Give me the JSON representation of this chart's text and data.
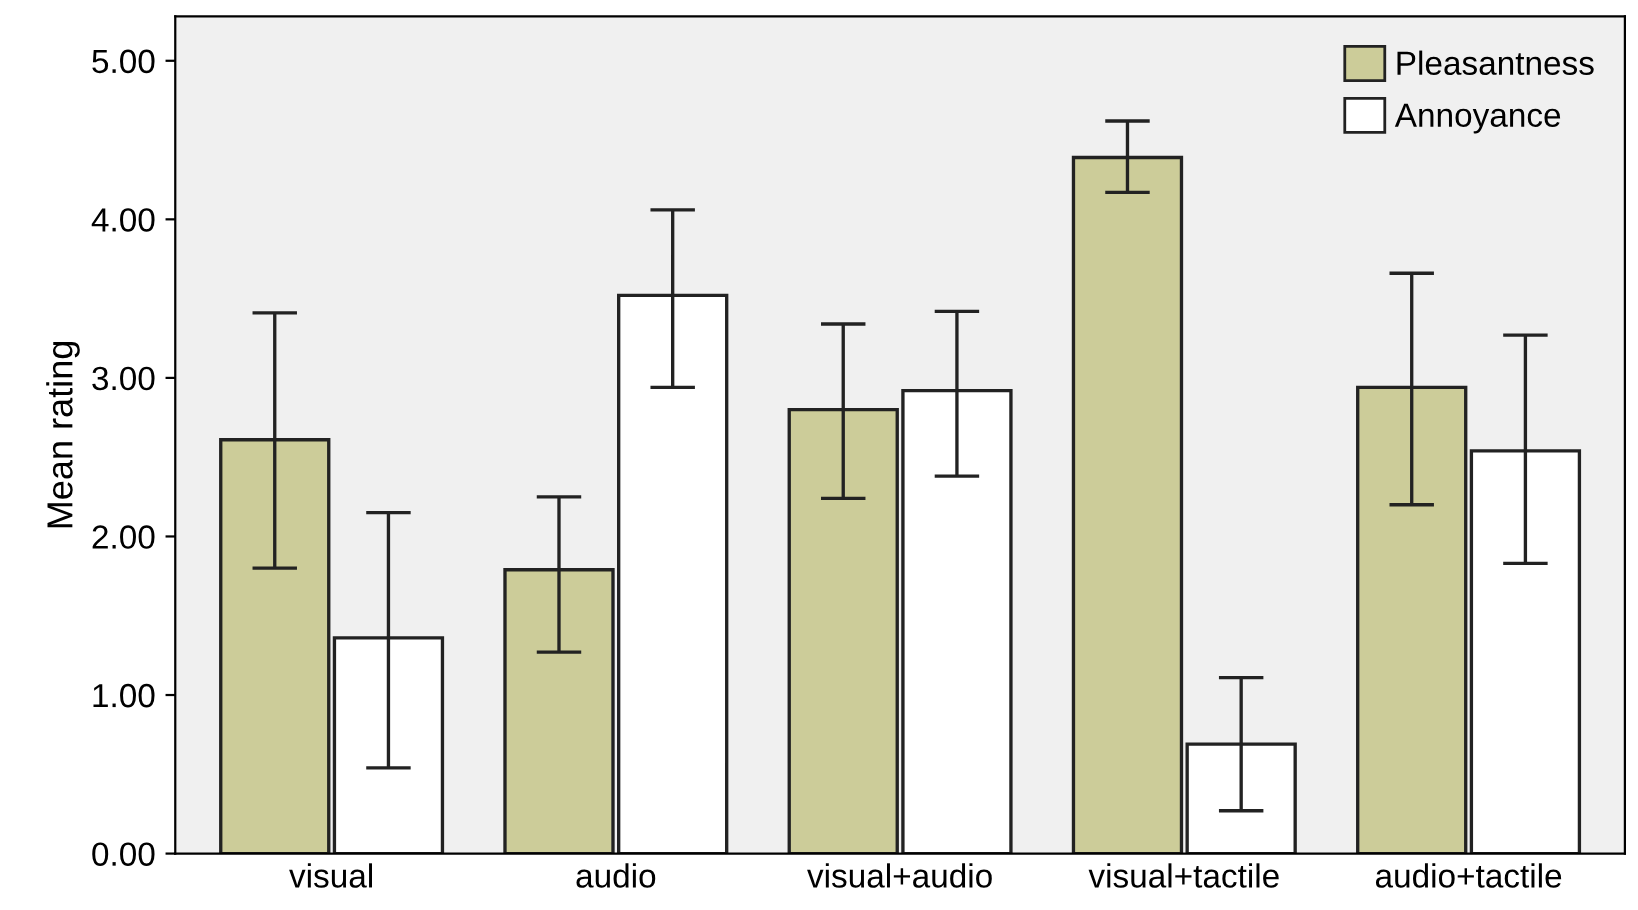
{
  "chart_data": {
    "type": "bar",
    "ylabel": "Mean rating",
    "categories": [
      "visual",
      "audio",
      "visual+audio",
      "visual+tactile",
      "audio+tactile"
    ],
    "series": [
      {
        "name": "Pleasantness",
        "color": "#cccc99",
        "values": [
          2.61,
          1.79,
          2.8,
          4.39,
          2.94
        ],
        "errors": [
          [
            1.8,
            3.41
          ],
          [
            1.27,
            2.25
          ],
          [
            2.24,
            3.34
          ],
          [
            4.17,
            4.62
          ],
          [
            2.2,
            3.66
          ]
        ]
      },
      {
        "name": "Annoyance",
        "color": "#ffffff",
        "values": [
          1.36,
          3.52,
          2.92,
          0.69,
          2.54
        ],
        "errors": [
          [
            0.54,
            2.15
          ],
          [
            2.94,
            4.06
          ],
          [
            2.38,
            3.42
          ],
          [
            0.27,
            1.11
          ],
          [
            1.83,
            3.27
          ]
        ]
      }
    ],
    "ylim": [
      0,
      5.28
    ],
    "yticks": [
      {
        "value": 0,
        "label": "0.00"
      },
      {
        "value": 1,
        "label": "1.00"
      },
      {
        "value": 2,
        "label": "2.00"
      },
      {
        "value": 3,
        "label": "3.00"
      },
      {
        "value": 4,
        "label": "4.00"
      },
      {
        "value": 5,
        "label": "5.00"
      }
    ],
    "grid": false,
    "legend": "top right"
  }
}
